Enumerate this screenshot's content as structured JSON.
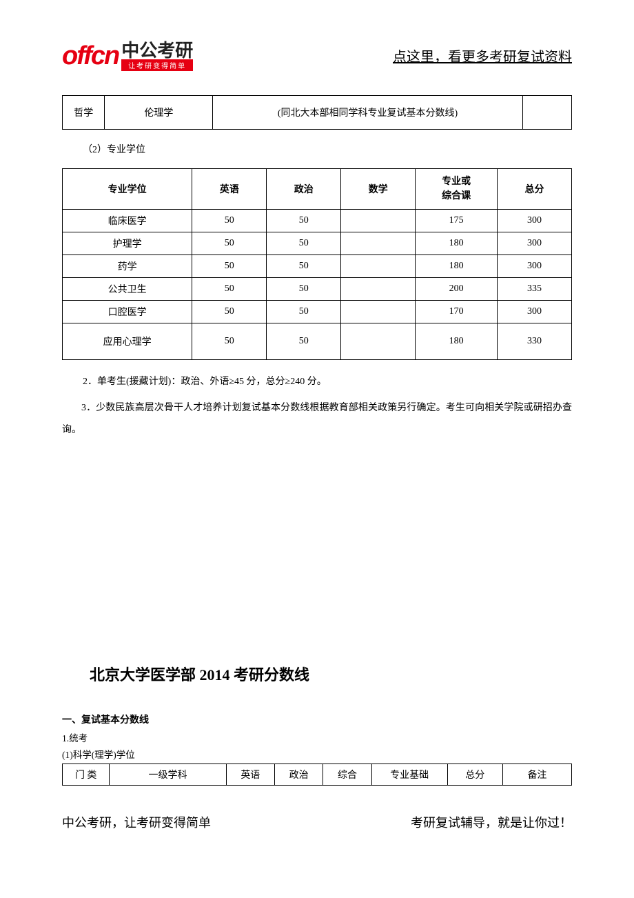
{
  "logo": {
    "en": "offcn",
    "cn": "中公考研",
    "sub": "让考研变得简单"
  },
  "header_link": "点这里，看更多考研复试资料",
  "table1": {
    "c1": "哲学",
    "c2": "伦理学",
    "c3": "(同北大本部相同学科专业复试基本分数线)",
    "c4": ""
  },
  "subhead1": "（2）专业学位",
  "table2": {
    "headers": [
      "专业学位",
      "英语",
      "政治",
      "数学",
      "专业或\n综合课",
      "总分"
    ],
    "rows": [
      [
        "临床医学",
        "50",
        "50",
        "",
        "175",
        "300"
      ],
      [
        "护理学",
        "50",
        "50",
        "",
        "180",
        "300"
      ],
      [
        "药学",
        "50",
        "50",
        "",
        "180",
        "300"
      ],
      [
        "公共卫生",
        "50",
        "50",
        "",
        "200",
        "335"
      ],
      [
        "口腔医学",
        "50",
        "50",
        "",
        "170",
        "300"
      ],
      [
        "应用心理学",
        "50",
        "50",
        "",
        "180",
        "330"
      ]
    ]
  },
  "para1": "2．单考生(援藏计划)：政治、外语≥45 分，总分≥240 分。",
  "para2": "3．少数民族高层次骨干人才培养计划复试基本分数线根据教育部相关政策另行确定。考生可向相关学院或研招办查询。",
  "title2014": "北京大学医学部 2014 考研分数线",
  "sec_head": "一、复试基本分数线",
  "small1": "1.统考",
  "small2": "(1)科学(理学)学位",
  "table3": {
    "headers": [
      "门 类",
      "一级学科",
      "英语",
      "政治",
      "综合",
      "专业基础",
      "总分",
      "备注"
    ]
  },
  "footer_left": "中公考研，让考研变得简单",
  "footer_right": "考研复试辅导，就是让你过！"
}
